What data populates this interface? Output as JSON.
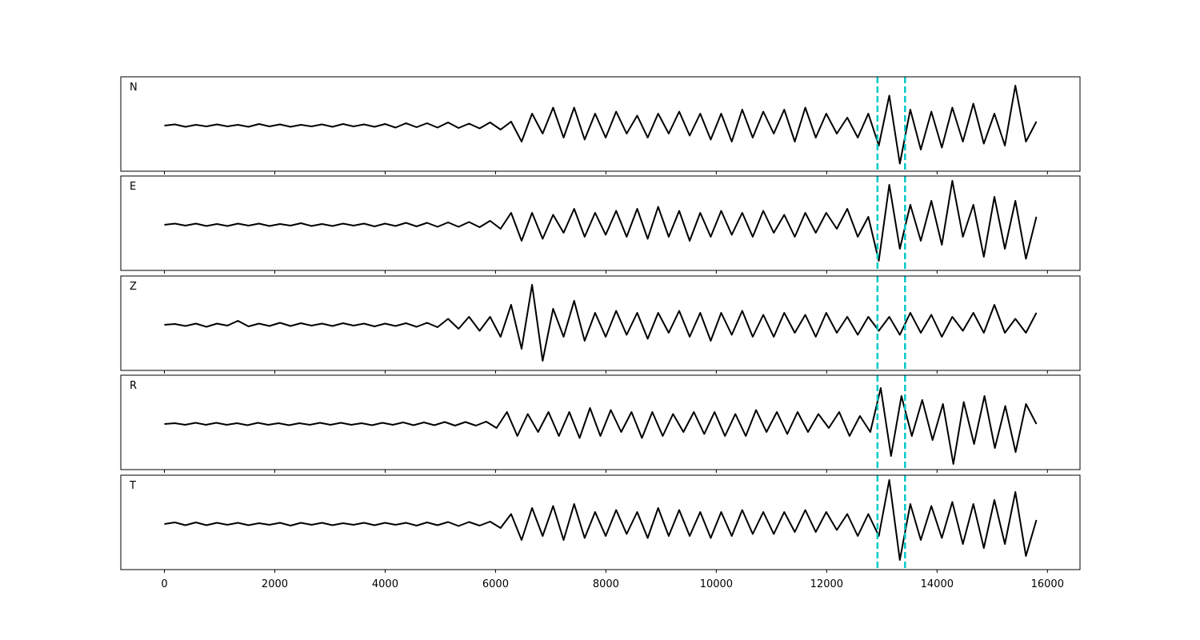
{
  "chart_data": {
    "type": "line",
    "title": "",
    "xlabel": "",
    "ylabel": "",
    "xlim": [
      -790,
      16590
    ],
    "x_ticks": [
      0,
      2000,
      4000,
      6000,
      8000,
      10000,
      12000,
      14000,
      16000
    ],
    "x_tick_labels": [
      "0",
      "2000",
      "4000",
      "6000",
      "8000",
      "10000",
      "12000",
      "14000",
      "16000"
    ],
    "x_range": [
      0,
      15800
    ],
    "shared_x": true,
    "y_ticks_visible": false,
    "grid": false,
    "trace_color": "#000000",
    "marker_color": "#00c8c8",
    "markers": [
      12920,
      13420
    ],
    "panels": [
      {
        "label": "N",
        "values": [
          0,
          0.03,
          -0.03,
          0.02,
          -0.02,
          0.03,
          -0.02,
          0.02,
          -0.03,
          0.04,
          -0.02,
          0.03,
          -0.03,
          0.02,
          -0.02,
          0.03,
          -0.03,
          0.04,
          -0.02,
          0.03,
          -0.03,
          0.04,
          -0.05,
          0.06,
          -0.04,
          0.06,
          -0.05,
          0.08,
          -0.06,
          0.05,
          -0.07,
          0.08,
          -0.1,
          0.1,
          -0.4,
          0.3,
          -0.2,
          0.45,
          -0.3,
          0.45,
          -0.35,
          0.3,
          -0.3,
          0.35,
          -0.2,
          0.25,
          -0.3,
          0.3,
          -0.2,
          0.35,
          -0.25,
          0.3,
          -0.35,
          0.3,
          -0.4,
          0.4,
          -0.3,
          0.35,
          -0.2,
          0.4,
          -0.4,
          0.45,
          -0.3,
          0.3,
          -0.2,
          0.2,
          -0.3,
          0.3,
          -0.5,
          0.75,
          -0.95,
          0.4,
          -0.6,
          0.35,
          -0.55,
          0.45,
          -0.4,
          0.55,
          -0.45,
          0.3,
          -0.5,
          1.0,
          -0.4,
          0.1
        ]
      },
      {
        "label": "E",
        "values": [
          0,
          0.03,
          -0.02,
          0.03,
          -0.03,
          0.02,
          -0.03,
          0.03,
          -0.02,
          0.03,
          -0.03,
          0.02,
          -0.02,
          0.04,
          -0.03,
          0.02,
          -0.03,
          0.03,
          -0.02,
          0.03,
          -0.04,
          0.03,
          -0.03,
          0.05,
          -0.04,
          0.05,
          -0.05,
          0.06,
          -0.05,
          0.07,
          -0.06,
          0.1,
          -0.1,
          0.3,
          -0.4,
          0.3,
          -0.35,
          0.25,
          -0.2,
          0.4,
          -0.3,
          0.3,
          -0.25,
          0.35,
          -0.3,
          0.4,
          -0.35,
          0.45,
          -0.3,
          0.35,
          -0.4,
          0.3,
          -0.3,
          0.35,
          -0.25,
          0.3,
          -0.3,
          0.35,
          -0.2,
          0.25,
          -0.3,
          0.3,
          -0.2,
          0.3,
          -0.1,
          0.4,
          -0.3,
          0.2,
          -0.9,
          1.0,
          -0.6,
          0.5,
          -0.4,
          0.6,
          -0.5,
          1.1,
          -0.3,
          0.5,
          -0.8,
          0.7,
          -0.6,
          0.6,
          -0.85,
          0.2
        ]
      },
      {
        "label": "Z",
        "values": [
          0,
          0.02,
          -0.03,
          0.03,
          -0.05,
          0.03,
          -0.02,
          0.1,
          -0.04,
          0.03,
          -0.03,
          0.05,
          -0.03,
          0.04,
          -0.02,
          0.03,
          -0.03,
          0.04,
          -0.02,
          0.03,
          -0.04,
          0.03,
          -0.03,
          0.04,
          -0.05,
          0.05,
          -0.06,
          0.15,
          -0.1,
          0.2,
          -0.15,
          0.2,
          -0.3,
          0.5,
          -0.6,
          1.0,
          -0.9,
          0.4,
          -0.3,
          0.6,
          -0.4,
          0.3,
          -0.3,
          0.35,
          -0.25,
          0.3,
          -0.35,
          0.3,
          -0.2,
          0.35,
          -0.3,
          0.3,
          -0.4,
          0.3,
          -0.25,
          0.35,
          -0.3,
          0.25,
          -0.3,
          0.3,
          -0.2,
          0.25,
          -0.3,
          0.3,
          -0.2,
          0.2,
          -0.25,
          0.2,
          -0.15,
          0.2,
          -0.25,
          0.3,
          -0.2,
          0.25,
          -0.3,
          0.2,
          -0.15,
          0.3,
          -0.2,
          0.5,
          -0.2,
          0.15,
          -0.2,
          0.3
        ]
      },
      {
        "label": "R",
        "values": [
          0,
          0.02,
          -0.02,
          0.03,
          -0.02,
          0.03,
          -0.02,
          0.02,
          -0.03,
          0.03,
          -0.02,
          0.02,
          -0.03,
          0.02,
          -0.02,
          0.03,
          -0.02,
          0.03,
          -0.02,
          0.02,
          -0.03,
          0.03,
          -0.02,
          0.04,
          -0.03,
          0.04,
          -0.03,
          0.05,
          -0.04,
          0.05,
          -0.04,
          0.06,
          -0.1,
          0.3,
          -0.3,
          0.25,
          -0.2,
          0.3,
          -0.3,
          0.3,
          -0.35,
          0.4,
          -0.3,
          0.35,
          -0.2,
          0.3,
          -0.35,
          0.3,
          -0.3,
          0.25,
          -0.2,
          0.3,
          -0.25,
          0.3,
          -0.3,
          0.25,
          -0.3,
          0.35,
          -0.2,
          0.3,
          -0.25,
          0.3,
          -0.2,
          0.25,
          -0.1,
          0.3,
          -0.3,
          0.2,
          -0.2,
          0.9,
          -0.8,
          0.7,
          -0.3,
          0.6,
          -0.4,
          0.5,
          -1.0,
          0.55,
          -0.5,
          0.7,
          -0.6,
          0.45,
          -0.7,
          0.5,
          0
        ]
      },
      {
        "label": "T",
        "values": [
          0,
          0.04,
          -0.03,
          0.04,
          -0.03,
          0.03,
          -0.02,
          0.03,
          -0.03,
          0.02,
          -0.02,
          0.03,
          -0.04,
          0.03,
          -0.02,
          0.03,
          -0.03,
          0.02,
          -0.02,
          0.03,
          -0.03,
          0.03,
          -0.02,
          0.03,
          -0.04,
          0.04,
          -0.03,
          0.05,
          -0.05,
          0.05,
          -0.04,
          0.06,
          -0.1,
          0.25,
          -0.4,
          0.4,
          -0.3,
          0.45,
          -0.4,
          0.5,
          -0.35,
          0.3,
          -0.3,
          0.35,
          -0.25,
          0.3,
          -0.35,
          0.4,
          -0.3,
          0.35,
          -0.3,
          0.3,
          -0.35,
          0.3,
          -0.3,
          0.35,
          -0.25,
          0.3,
          -0.25,
          0.3,
          -0.2,
          0.35,
          -0.2,
          0.3,
          -0.15,
          0.25,
          -0.3,
          0.25,
          -0.3,
          1.1,
          -0.9,
          0.5,
          -0.4,
          0.45,
          -0.35,
          0.55,
          -0.5,
          0.5,
          -0.6,
          0.6,
          -0.5,
          0.8,
          -0.8,
          0.1
        ]
      }
    ]
  }
}
